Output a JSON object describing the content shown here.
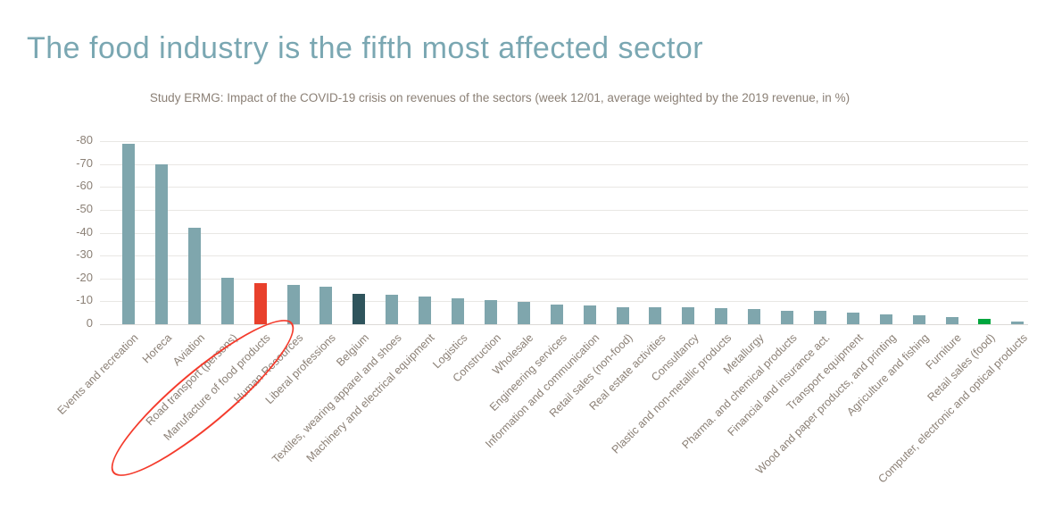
{
  "page": {
    "title": "The food industry is the fifth most affected sector"
  },
  "colors": {
    "title_text": "#7aa7b2",
    "body_text": "#8b8076",
    "gridline": "#e9e7e4",
    "bar_default": "#7fa6ad",
    "bar_highlight_red": "#e8402c",
    "bar_highlight_dark": "#2f545c",
    "bar_highlight_green": "#00a63e",
    "annotation_red": "#f43b2c"
  },
  "chart_data": {
    "type": "bar",
    "title": "Study ERMG: Impact of the COVID-19 crisis on revenues of the sectors (week 12/01, average weighted by the 2019 revenue, in %)",
    "xlabel": "",
    "ylabel": "",
    "ylim": [
      -80,
      0
    ],
    "yticks": [
      -80,
      -70,
      -60,
      -50,
      -40,
      -30,
      -20,
      -10,
      0
    ],
    "grid": true,
    "legend_position": "none",
    "y_axis_inverted": true,
    "categories": [
      "Events and recreation",
      "Horeca",
      "Aviation",
      "Road transport (persons)",
      "Manufacture of food products",
      "Human Resources",
      "Liberal professions",
      "Belgium",
      "Textiles, wearing apparel and shoes",
      "Machinery and electrical equipment",
      "Logistics",
      "Construction",
      "Wholesale",
      "Engineering services",
      "Information and communication",
      "Retail sales (non-food)",
      "Real estate activities",
      "Consultancy",
      "Plastic and non-metallic products",
      "Metallurgy",
      "Pharma. and chemical products",
      "Financial and insurance act.",
      "Transport equipment",
      "Wood and paper products, and printing",
      "Agriculture and fishing",
      "Furniture",
      "Retail sales (food)",
      "Computer, electronic and optical products"
    ],
    "values": [
      -79,
      -70,
      -42,
      -20.5,
      -18,
      -17,
      -16.5,
      -13.2,
      -12.8,
      -12,
      -11.3,
      -10.5,
      -9.7,
      -8.4,
      -8.3,
      -7.5,
      -7.4,
      -7.3,
      -7.1,
      -6.8,
      -5.8,
      -5.7,
      -5.2,
      -4.3,
      -3.9,
      -3,
      -2.2,
      -1
    ],
    "bar_colors": {
      "default": "#7fa6ad",
      "4": "#e8402c",
      "7": "#2f545c",
      "26": "#00a63e"
    },
    "annotation": {
      "shape": "ellipse",
      "target_category": "Manufacture of food products",
      "color": "#f43b2c"
    }
  }
}
